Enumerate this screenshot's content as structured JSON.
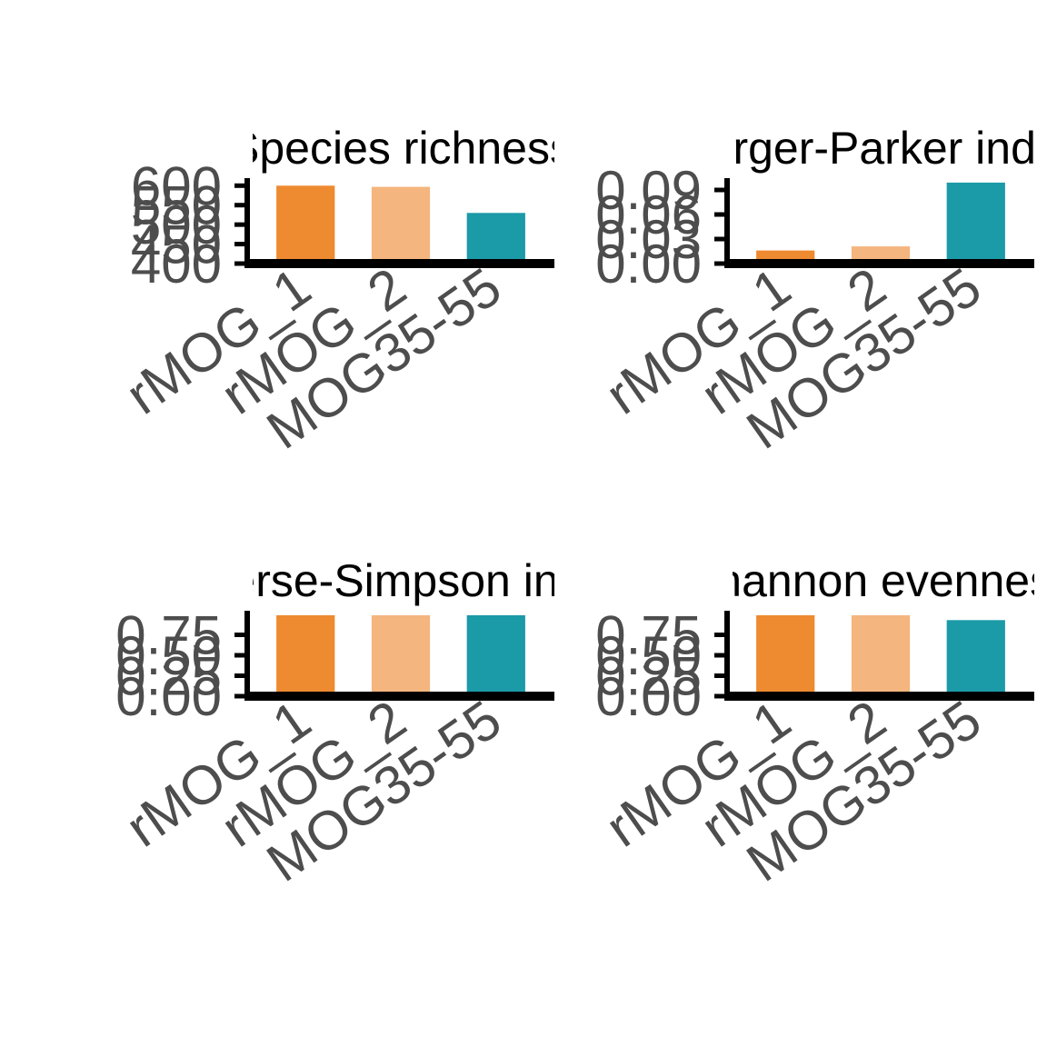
{
  "chart_data": [
    {
      "type": "bar",
      "title": "Species richness",
      "categories": [
        "rMOG_1",
        "rMOG_2",
        "MOG35-55"
      ],
      "values": [
        600,
        597,
        530
      ],
      "ylim": [
        400,
        610
      ],
      "yticks": [
        "400",
        "450",
        "500",
        "550",
        "600"
      ],
      "grid": false
    },
    {
      "type": "bar",
      "title": "Berger-Parker index",
      "categories": [
        "rMOG_1",
        "rMOG_2",
        "MOG35-55"
      ],
      "values": [
        0.016,
        0.021,
        0.099
      ],
      "ylim": [
        0.0,
        0.1
      ],
      "yticks": [
        "0.00",
        "0.03",
        "0.06",
        "0.09"
      ],
      "grid": false
    },
    {
      "type": "bar",
      "title": "Inverse-Simpson index",
      "categories": [
        "rMOG_1",
        "rMOG_2",
        "MOG35-55"
      ],
      "values": [
        0.99,
        0.99,
        0.99
      ],
      "ylim": [
        0.0,
        1.0
      ],
      "yticks": [
        "0.00",
        "0.25",
        "0.50",
        "0.75"
      ],
      "grid": false
    },
    {
      "type": "bar",
      "title": "Shannon evenness",
      "categories": [
        "rMOG_1",
        "rMOG_2",
        "MOG35-55"
      ],
      "values": [
        0.99,
        0.99,
        0.93
      ],
      "ylim": [
        0.0,
        1.0
      ],
      "yticks": [
        "0.00",
        "0.25",
        "0.50",
        "0.75"
      ],
      "grid": false
    }
  ],
  "colors": {
    "rMOG_1": "#ee8a30",
    "rMOG_2": "#f4b57e",
    "MOG35-55": "#1b9aa8",
    "axis": "#000000",
    "tick_text": "#4d4d4d"
  }
}
